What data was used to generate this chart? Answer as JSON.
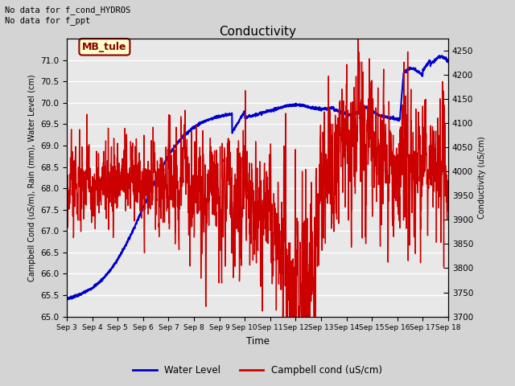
{
  "title": "Conductivity",
  "xlabel": "Time",
  "ylabel_left": "Campbell Cond (uS/m), Rain (mm), Water Level (cm)",
  "ylabel_right": "Conductivity (uS/cm)",
  "text_top_left": "No data for f_cond_HYDROS\nNo data for f_ppt",
  "annotation_box": "MB_tule",
  "legend_entries": [
    "Water Level",
    "Campbell cond (uS/cm)"
  ],
  "legend_colors": [
    "#0000cc",
    "#cc0000"
  ],
  "ylim_left": [
    65.0,
    71.5
  ],
  "ylim_right": [
    3700,
    4275
  ],
  "yticks_left": [
    65.0,
    65.5,
    66.0,
    66.5,
    67.0,
    67.5,
    68.0,
    68.5,
    69.0,
    69.5,
    70.0,
    70.5,
    71.0
  ],
  "yticks_right": [
    3700,
    3750,
    3800,
    3850,
    3900,
    3950,
    4000,
    4050,
    4100,
    4150,
    4200,
    4250
  ],
  "xtick_labels": [
    "Sep 3",
    "Sep 4",
    "Sep 5",
    "Sep 6",
    "Sep 7",
    "Sep 8",
    "Sep 9",
    "Sep 10",
    "Sep 11",
    "Sep 12",
    "Sep 13",
    "Sep 14",
    "Sep 15",
    "Sep 16",
    "Sep 17",
    "Sep 18"
  ],
  "background_color": "#d4d4d4",
  "plot_bg_color": "#e8e8e8",
  "water_level_color": "#0000cc",
  "campbell_color": "#cc0000",
  "water_level_linewidth": 1.5,
  "campbell_linewidth": 1.0
}
